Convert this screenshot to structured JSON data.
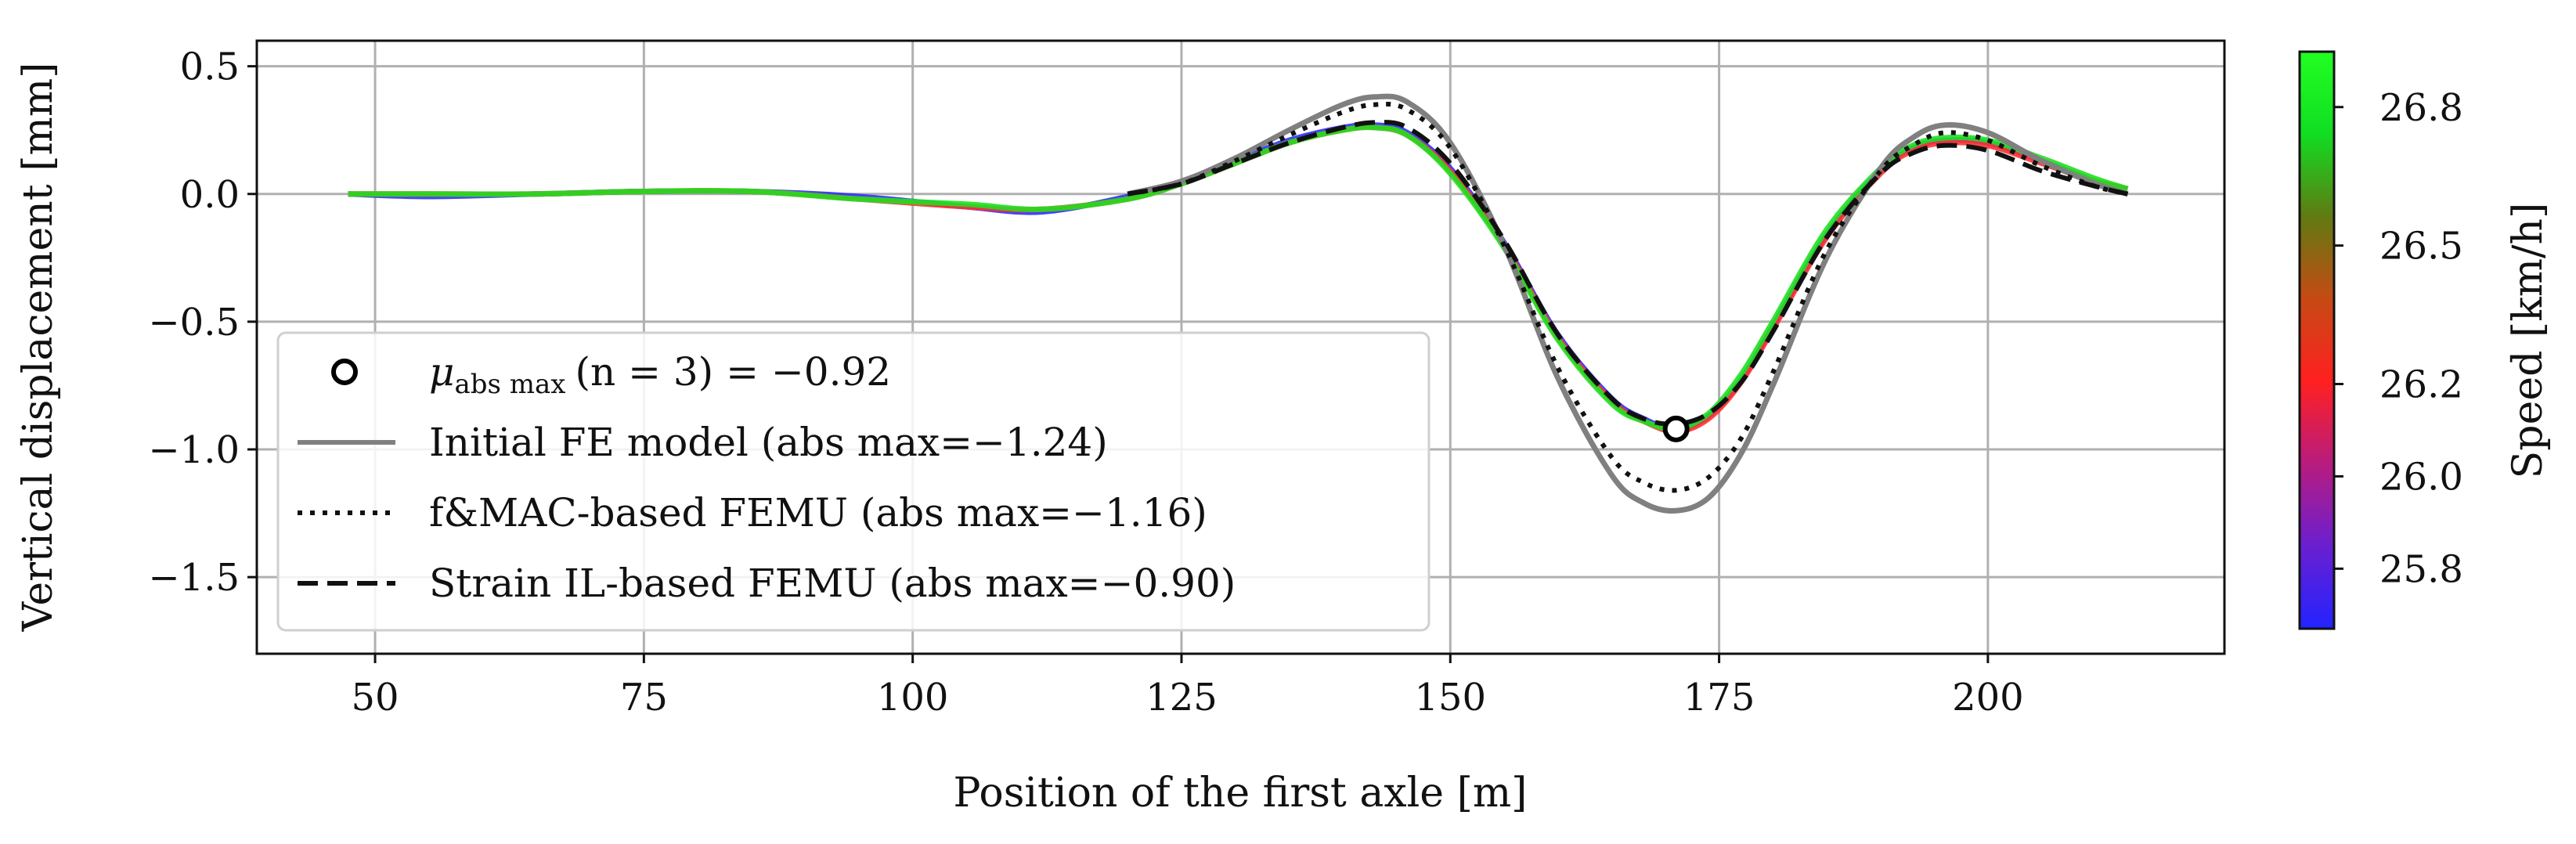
{
  "chart_data": {
    "type": "line",
    "title": "",
    "xlabel": "Position of the first axle [m]",
    "ylabel": "Vertical displacement [mm]",
    "xlim": [
      39,
      222
    ],
    "ylim": [
      -1.8,
      0.6
    ],
    "xticks": [
      50,
      75,
      100,
      125,
      150,
      175,
      200
    ],
    "yticks": [
      0.5,
      0.0,
      -0.5,
      -1.0,
      -1.5
    ],
    "xtick_labels": [
      "50",
      "75",
      "100",
      "125",
      "150",
      "175",
      "200"
    ],
    "ytick_labels": [
      "0.5",
      "0.0",
      "−0.5",
      "−1.0",
      "−1.5"
    ],
    "grid": true,
    "colorbar": {
      "label": "Speed [km/h]",
      "range": [
        25.67,
        26.92
      ],
      "ticks": [
        25.8,
        26.0,
        26.2,
        26.5,
        26.8
      ],
      "tick_labels": [
        "25.8",
        "26.0",
        "26.2",
        "26.5",
        "26.8"
      ],
      "colors": [
        "#2323ff",
        "#6a1fd0",
        "#b81c7e",
        "#ff2020",
        "#c64a14",
        "#607a12",
        "#11dd22",
        "#22ff22"
      ]
    },
    "series": [
      {
        "name": "Initial FE model (abs max=−1.24)",
        "style": "solid",
        "color": "#808080",
        "x": [
          120,
          125,
          130,
          135,
          140,
          143,
          146,
          150,
          155,
          160,
          165,
          168,
          171,
          174,
          177,
          180,
          185,
          190,
          193,
          196,
          200,
          205,
          210,
          213
        ],
        "y": [
          0.0,
          0.05,
          0.14,
          0.25,
          0.35,
          0.38,
          0.36,
          0.2,
          -0.2,
          -0.72,
          -1.1,
          -1.21,
          -1.24,
          -1.19,
          -1.02,
          -0.75,
          -0.25,
          0.1,
          0.22,
          0.27,
          0.24,
          0.13,
          0.04,
          0.0
        ]
      },
      {
        "name": "f&MAC-based FEMU (abs max=−1.16)",
        "style": "dotted",
        "color": "#111111",
        "x": [
          120,
          125,
          130,
          135,
          140,
          143,
          146,
          150,
          155,
          160,
          165,
          168,
          171,
          174,
          177,
          180,
          185,
          190,
          193,
          196,
          200,
          205,
          210,
          213
        ],
        "y": [
          0.0,
          0.04,
          0.13,
          0.23,
          0.32,
          0.35,
          0.33,
          0.18,
          -0.2,
          -0.68,
          -1.03,
          -1.13,
          -1.16,
          -1.11,
          -0.96,
          -0.7,
          -0.22,
          0.09,
          0.19,
          0.24,
          0.21,
          0.11,
          0.03,
          0.0
        ]
      },
      {
        "name": "Strain IL-based FEMU (abs max=−0.90)",
        "style": "dashed",
        "color": "#111111",
        "x": [
          120,
          125,
          130,
          135,
          140,
          143,
          146,
          150,
          155,
          160,
          165,
          168,
          171,
          174,
          177,
          180,
          185,
          190,
          193,
          196,
          200,
          205,
          210,
          213
        ],
        "y": [
          0.0,
          0.04,
          0.12,
          0.2,
          0.26,
          0.28,
          0.26,
          0.12,
          -0.18,
          -0.55,
          -0.8,
          -0.88,
          -0.9,
          -0.86,
          -0.74,
          -0.54,
          -0.17,
          0.08,
          0.16,
          0.19,
          0.17,
          0.09,
          0.03,
          0.0
        ]
      }
    ],
    "measured_runs": [
      {
        "speed": 25.7,
        "color": "#2f2fff",
        "x": [
          47.5,
          55,
          65,
          75,
          85,
          95,
          105,
          112,
          120,
          125,
          130,
          135,
          140,
          143,
          146,
          150,
          155,
          160,
          165,
          168,
          171,
          174,
          177,
          180,
          185,
          190,
          193,
          196,
          200,
          205,
          210,
          213
        ],
        "y": [
          0.0,
          -0.01,
          0.0,
          0.01,
          0.01,
          -0.01,
          -0.05,
          -0.07,
          -0.01,
          0.05,
          0.13,
          0.21,
          0.26,
          0.27,
          0.24,
          0.1,
          -0.19,
          -0.55,
          -0.8,
          -0.88,
          -0.92,
          -0.87,
          -0.73,
          -0.52,
          -0.16,
          0.09,
          0.18,
          0.21,
          0.2,
          0.13,
          0.05,
          0.02
        ]
      },
      {
        "speed": 26.3,
        "color": "#ff3030",
        "x": [
          47.5,
          55,
          65,
          75,
          85,
          95,
          105,
          112,
          120,
          125,
          130,
          135,
          140,
          143,
          146,
          150,
          155,
          160,
          165,
          168,
          171,
          174,
          177,
          180,
          185,
          190,
          193,
          196,
          200,
          205,
          210,
          213
        ],
        "y": [
          0.0,
          0.0,
          0.0,
          0.01,
          0.01,
          -0.02,
          -0.05,
          -0.06,
          -0.02,
          0.04,
          0.12,
          0.2,
          0.25,
          0.26,
          0.23,
          0.09,
          -0.2,
          -0.56,
          -0.81,
          -0.89,
          -0.93,
          -0.88,
          -0.74,
          -0.53,
          -0.17,
          0.08,
          0.17,
          0.2,
          0.19,
          0.12,
          0.05,
          0.02
        ]
      },
      {
        "speed": 26.9,
        "color": "#20e020",
        "x": [
          47.5,
          55,
          65,
          75,
          85,
          95,
          105,
          112,
          120,
          125,
          130,
          135,
          140,
          143,
          146,
          150,
          155,
          160,
          165,
          168,
          171,
          174,
          177,
          180,
          185,
          190,
          193,
          196,
          200,
          205,
          210,
          213
        ],
        "y": [
          0.0,
          0.0,
          0.0,
          0.01,
          0.01,
          -0.02,
          -0.04,
          -0.06,
          -0.02,
          0.04,
          0.12,
          0.2,
          0.25,
          0.26,
          0.23,
          0.08,
          -0.21,
          -0.57,
          -0.82,
          -0.89,
          -0.92,
          -0.86,
          -0.71,
          -0.5,
          -0.14,
          0.1,
          0.19,
          0.22,
          0.21,
          0.14,
          0.06,
          0.02
        ]
      }
    ],
    "marker": {
      "x": 171,
      "y": -0.92,
      "label_text": "(n = 3) = −0.92",
      "label_symbol": "μ",
      "label_sub": "abs max"
    },
    "legend": {
      "position": "lower-left",
      "entries": [
        {
          "kind": "marker",
          "text": "(n = 3) = −0.92"
        },
        {
          "kind": "solid",
          "text": "Initial FE model (abs max=−1.24)"
        },
        {
          "kind": "dotted",
          "text": "f&MAC-based FEMU (abs max=−1.16)"
        },
        {
          "kind": "dashed",
          "text": "Strain IL-based FEMU (abs max=−0.90)"
        }
      ]
    }
  }
}
